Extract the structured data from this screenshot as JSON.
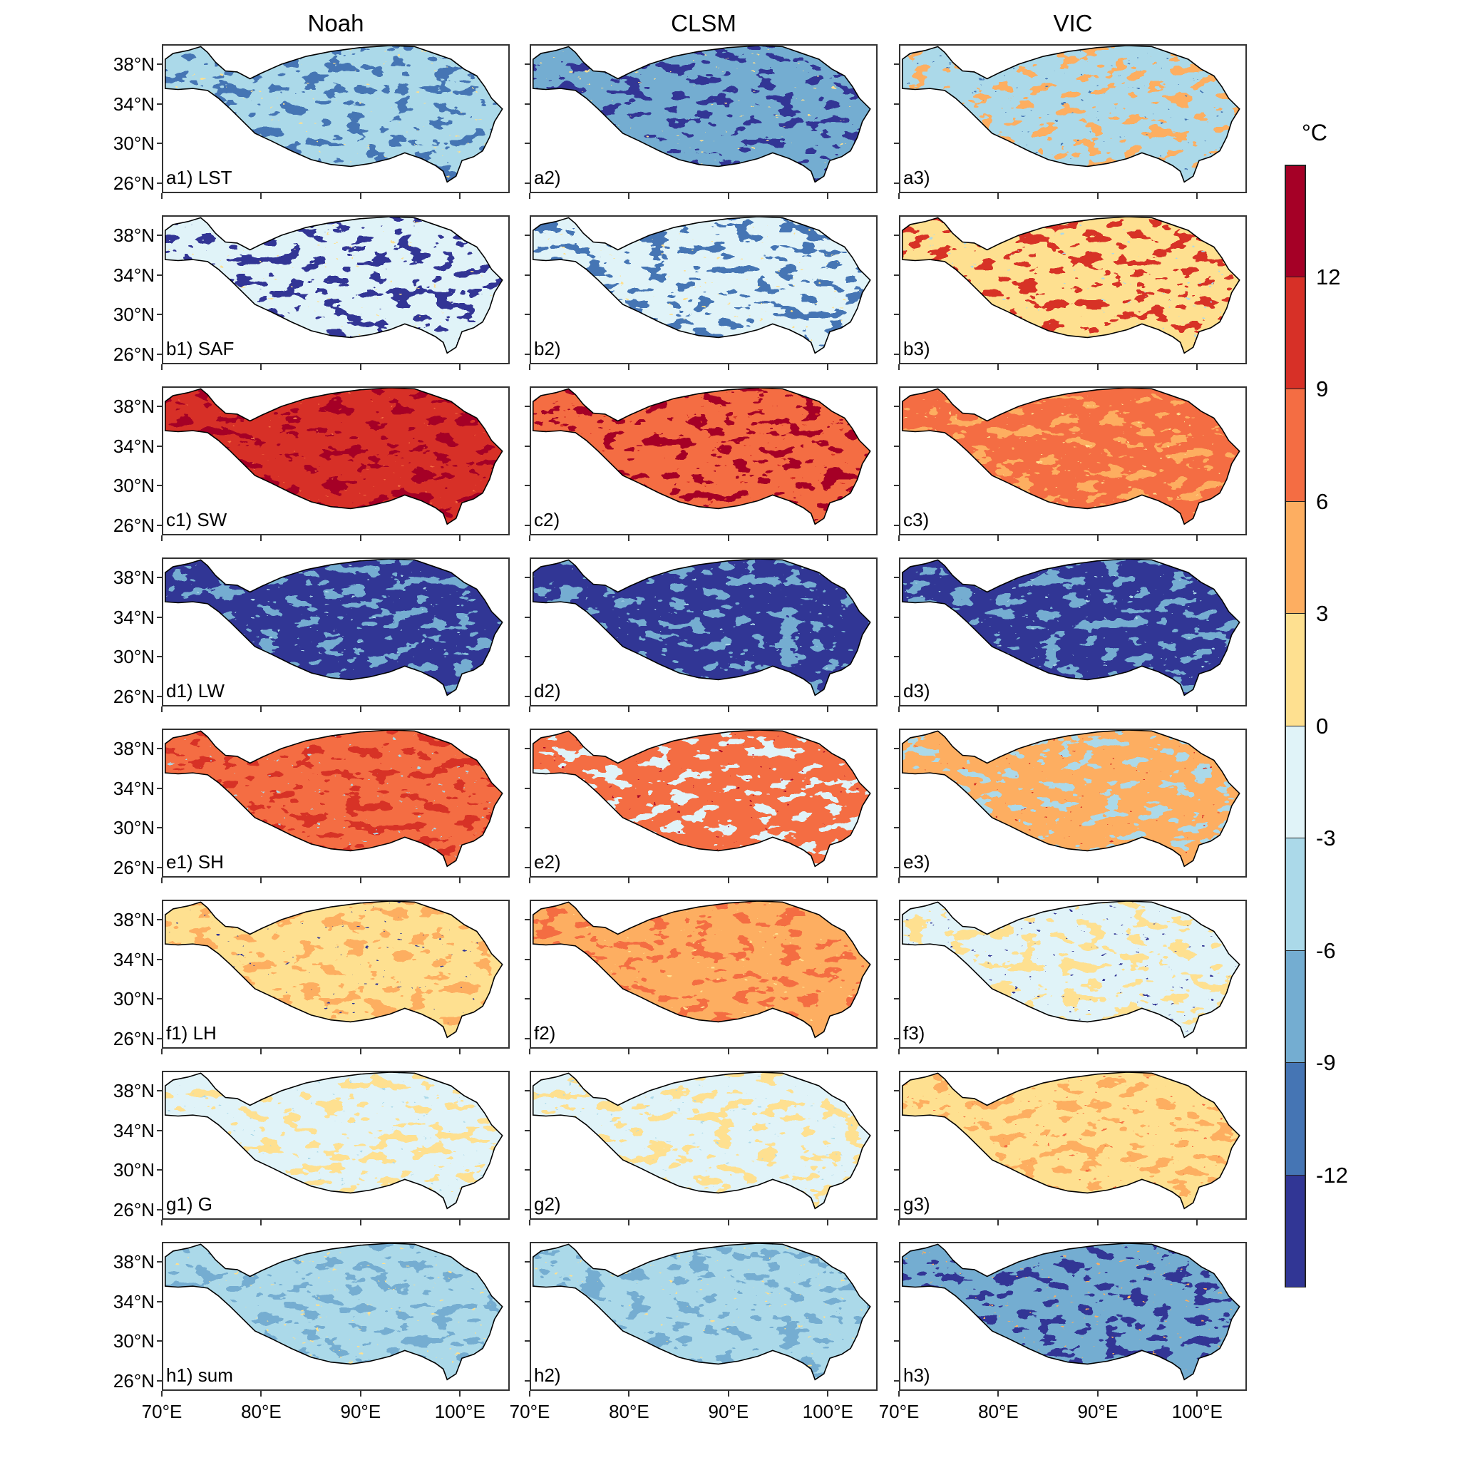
{
  "columns": [
    "Noah",
    "CLSM",
    "VIC"
  ],
  "lat_ticks": [
    {
      "lat": 26,
      "label": "26°N"
    },
    {
      "lat": 30,
      "label": "30°N"
    },
    {
      "lat": 34,
      "label": "34°N"
    },
    {
      "lat": 38,
      "label": "38°N"
    }
  ],
  "lon_ticks": [
    {
      "lon": 70,
      "label": "70°E"
    },
    {
      "lon": 80,
      "label": "80°E"
    },
    {
      "lon": 90,
      "label": "90°E"
    },
    {
      "lon": 100,
      "label": "100°E"
    }
  ],
  "map_extent": {
    "lon": [
      70,
      105
    ],
    "lat": [
      25,
      40
    ]
  },
  "colorbar": {
    "unit": "°C",
    "labels": [
      "12",
      "9",
      "6",
      "3",
      "0",
      "-3",
      "-6",
      "-9",
      "-12"
    ],
    "colors": [
      "#a50026",
      "#d73027",
      "#f46d43",
      "#fdae61",
      "#fee090",
      "#e0f3f8",
      "#abd9e9",
      "#74add1",
      "#4575b4",
      "#313695"
    ]
  },
  "rows": [
    {
      "panels": [
        {
          "label": "a1) LST",
          "base": "#abd9e9",
          "second": "#4575b4",
          "third": "#fee090"
        },
        {
          "label": "a2)",
          "base": "#74add1",
          "second": "#313695",
          "third": "#fee090"
        },
        {
          "label": "a3)",
          "base": "#abd9e9",
          "second": "#fdae61",
          "third": "#4575b4"
        }
      ]
    },
    {
      "panels": [
        {
          "label": "b1) SAF",
          "base": "#e0f3f8",
          "second": "#313695",
          "third": "#fee090"
        },
        {
          "label": "b2)",
          "base": "#e0f3f8",
          "second": "#4575b4",
          "third": "#fee090"
        },
        {
          "label": "b3)",
          "base": "#fee090",
          "second": "#d73027",
          "third": "#abd9e9"
        }
      ]
    },
    {
      "panels": [
        {
          "label": "c1) SW",
          "base": "#d73027",
          "second": "#a50026",
          "third": "#f46d43"
        },
        {
          "label": "c2)",
          "base": "#f46d43",
          "second": "#a50026",
          "third": "#d73027"
        },
        {
          "label": "c3)",
          "base": "#f46d43",
          "second": "#fdae61",
          "third": "#fee090"
        }
      ]
    },
    {
      "panels": [
        {
          "label": "d1) LW",
          "base": "#313695",
          "second": "#74add1",
          "third": "#abd9e9"
        },
        {
          "label": "d2)",
          "base": "#313695",
          "second": "#74add1",
          "third": "#abd9e9"
        },
        {
          "label": "d3)",
          "base": "#313695",
          "second": "#74add1",
          "third": "#abd9e9"
        }
      ]
    },
    {
      "panels": [
        {
          "label": "e1) SH",
          "base": "#f46d43",
          "second": "#d73027",
          "third": "#abd9e9"
        },
        {
          "label": "e2)",
          "base": "#f46d43",
          "second": "#e0f3f8",
          "third": "#a50026"
        },
        {
          "label": "e3)",
          "base": "#fdae61",
          "second": "#abd9e9",
          "third": "#d73027"
        }
      ]
    },
    {
      "panels": [
        {
          "label": "f1) LH",
          "base": "#fee090",
          "second": "#fdae61",
          "third": "#313695"
        },
        {
          "label": "f2)",
          "base": "#fdae61",
          "second": "#f46d43",
          "third": "#fee090"
        },
        {
          "label": "f3)",
          "base": "#e0f3f8",
          "second": "#fee090",
          "third": "#313695"
        }
      ]
    },
    {
      "panels": [
        {
          "label": "g1) G",
          "base": "#e0f3f8",
          "second": "#fee090",
          "third": "#abd9e9"
        },
        {
          "label": "g2)",
          "base": "#e0f3f8",
          "second": "#fee090",
          "third": "#abd9e9"
        },
        {
          "label": "g3)",
          "base": "#fee090",
          "second": "#fdae61",
          "third": "#f46d43"
        }
      ]
    },
    {
      "panels": [
        {
          "label": "h1) sum",
          "base": "#abd9e9",
          "second": "#74add1",
          "third": "#fee090"
        },
        {
          "label": "h2)",
          "base": "#abd9e9",
          "second": "#74add1",
          "third": "#fee090"
        },
        {
          "label": "h3)",
          "base": "#74add1",
          "second": "#313695",
          "third": "#fdae61"
        }
      ]
    }
  ]
}
